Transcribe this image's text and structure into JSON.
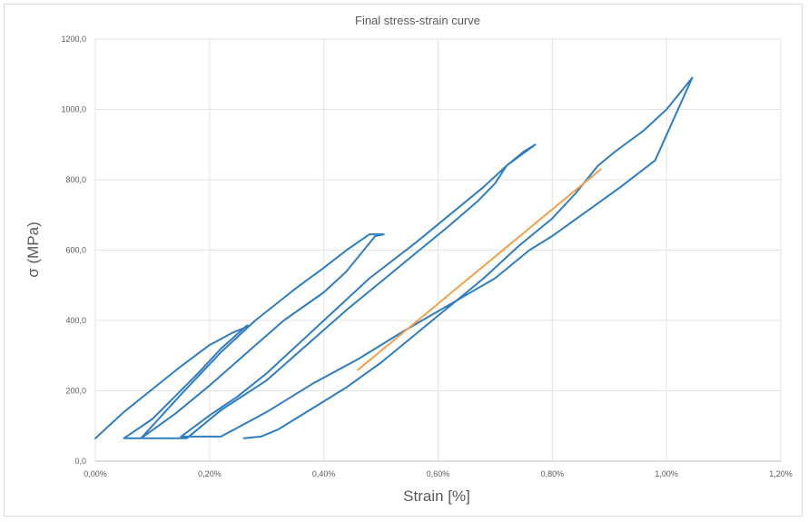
{
  "chart_data": {
    "type": "line",
    "title": "Final stress-strain curve",
    "xlabel": "Strain [%]",
    "ylabel": "σ (MPa)",
    "xlim": [
      0,
      1.2
    ],
    "ylim": [
      0,
      1200
    ],
    "x_ticks": [
      "0,00%",
      "0,20%",
      "0,40%",
      "0,60%",
      "0,80%",
      "1,00%",
      "1,20%"
    ],
    "y_ticks": [
      "0,0",
      "200,0",
      "400,0",
      "600,0",
      "800,0",
      "1000,0",
      "1200,0"
    ],
    "grid": true,
    "colors": {
      "series1": "#2e7dc0",
      "series2": "#f4a04a"
    },
    "series": [
      {
        "color": "#2e7dc0",
        "x": [
          0.0,
          0.05,
          0.1,
          0.15,
          0.2,
          0.24,
          0.27,
          0.265,
          0.22,
          0.18,
          0.14,
          0.1,
          0.05,
          0.08,
          0.14,
          0.2,
          0.27,
          0.33,
          0.4,
          0.44,
          0.47,
          0.49,
          0.505,
          0.48,
          0.44,
          0.4,
          0.35,
          0.28,
          0.22,
          0.15,
          0.08,
          0.16,
          0.22,
          0.3,
          0.37,
          0.44,
          0.5,
          0.56,
          0.62,
          0.67,
          0.7,
          0.72,
          0.77,
          0.75,
          0.72,
          0.68,
          0.62,
          0.56,
          0.48,
          0.42,
          0.36,
          0.3,
          0.25,
          0.2,
          0.15,
          0.22,
          0.3,
          0.38,
          0.46,
          0.54,
          0.62,
          0.7,
          0.76,
          0.8,
          0.86,
          0.92,
          0.98,
          1.045,
          1.02,
          1.0,
          0.96,
          0.91,
          0.88,
          0.84,
          0.8,
          0.74,
          0.68,
          0.62,
          0.56,
          0.5,
          0.44,
          0.38,
          0.32,
          0.29,
          0.26
        ],
        "y": [
          65,
          140,
          205,
          270,
          330,
          365,
          385,
          385,
          320,
          250,
          185,
          120,
          65,
          65,
          135,
          215,
          315,
          400,
          480,
          540,
          600,
          640,
          645,
          645,
          600,
          550,
          490,
          400,
          310,
          190,
          65,
          65,
          145,
          230,
          330,
          430,
          510,
          590,
          670,
          740,
          790,
          840,
          900,
          880,
          840,
          780,
          700,
          620,
          520,
          430,
          340,
          250,
          185,
          130,
          70,
          70,
          140,
          220,
          290,
          370,
          445,
          520,
          600,
          640,
          710,
          780,
          855,
          1090,
          1040,
          1000,
          940,
          880,
          840,
          760,
          690,
          610,
          520,
          440,
          360,
          280,
          210,
          150,
          90,
          70,
          65
        ]
      },
      {
        "color": "#f4a04a",
        "x": [
          0.46,
          0.885
        ],
        "y": [
          260,
          830
        ]
      }
    ]
  }
}
